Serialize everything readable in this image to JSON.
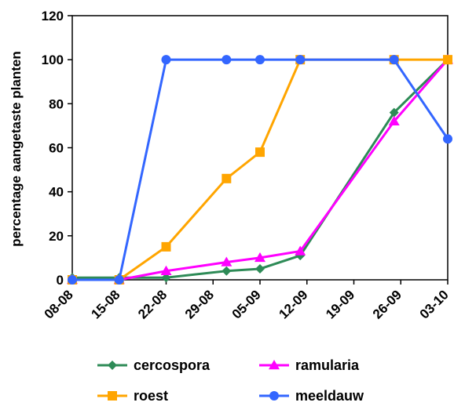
{
  "chart_data": {
    "type": "line",
    "title": "",
    "xlabel": "",
    "ylabel": "percentage aangetaste planten",
    "ylim": [
      0,
      120
    ],
    "yticks": [
      0,
      20,
      40,
      60,
      80,
      100,
      120
    ],
    "xlim": [
      0,
      56
    ],
    "xticks": [
      {
        "label": "08-08",
        "day": 0
      },
      {
        "label": "15-08",
        "day": 7
      },
      {
        "label": "22-08",
        "day": 14
      },
      {
        "label": "29-08",
        "day": 21
      },
      {
        "label": "05-09",
        "day": 28
      },
      {
        "label": "12-09",
        "day": 35
      },
      {
        "label": "19-09",
        "day": 42
      },
      {
        "label": "26-09",
        "day": 49
      },
      {
        "label": "03-10",
        "day": 56
      }
    ],
    "grid": false,
    "legend_position": "bottom",
    "series": [
      {
        "name": "cercospora",
        "color": "#2e8b57",
        "marker": "diamond",
        "x": [
          0,
          7,
          14,
          23,
          28,
          34,
          48,
          56
        ],
        "y": [
          1,
          1,
          1,
          4,
          5,
          11,
          76,
          100
        ]
      },
      {
        "name": "ramularia",
        "color": "#ff00ff",
        "marker": "triangle",
        "x": [
          0,
          7,
          14,
          23,
          28,
          34,
          48,
          56
        ],
        "y": [
          0,
          0,
          4,
          8,
          10,
          13,
          72,
          100
        ]
      },
      {
        "name": "roest",
        "color": "#ffa500",
        "marker": "square",
        "x": [
          0,
          7,
          14,
          23,
          28,
          34,
          48,
          56
        ],
        "y": [
          0,
          0,
          15,
          46,
          58,
          100,
          100,
          100
        ]
      },
      {
        "name": "meeldauw",
        "color": "#3366ff",
        "marker": "circle",
        "x": [
          0,
          7,
          14,
          23,
          28,
          34,
          48,
          56
        ],
        "y": [
          0,
          0,
          100,
          100,
          100,
          100,
          100,
          64
        ]
      }
    ]
  }
}
